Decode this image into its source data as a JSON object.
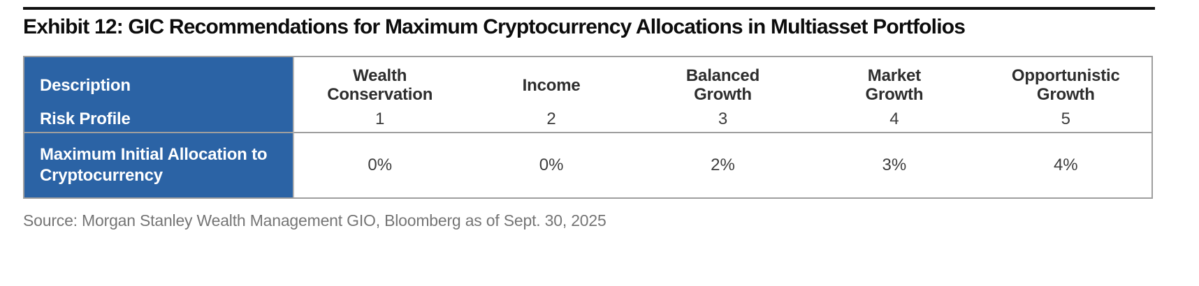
{
  "title": "Exhibit 12: GIC Recommendations for Maximum Cryptocurrency Allocations in Multiasset Portfolios",
  "table": {
    "corner": {
      "description_label": "Description",
      "risk_profile_label": "Risk Profile"
    },
    "allocation_row_label": "Maximum Initial Allocation to Cryptocurrency",
    "columns": [
      {
        "name": "Wealth Conservation",
        "risk_profile": "1",
        "max_allocation": "0%"
      },
      {
        "name": "Income",
        "risk_profile": "2",
        "max_allocation": "0%"
      },
      {
        "name": "Balanced Growth",
        "risk_profile": "3",
        "max_allocation": "2%"
      },
      {
        "name": "Market Growth",
        "risk_profile": "4",
        "max_allocation": "3%"
      },
      {
        "name": "Opportunistic Growth",
        "risk_profile": "5",
        "max_allocation": "4%"
      }
    ]
  },
  "source_note": "Source: Morgan Stanley Wealth Management GIO, Bloomberg as of Sept. 30, 2025",
  "colors": {
    "header_blue": "#2B63A5",
    "border_gray": "#9E9E9E",
    "rule_black": "#101010"
  }
}
